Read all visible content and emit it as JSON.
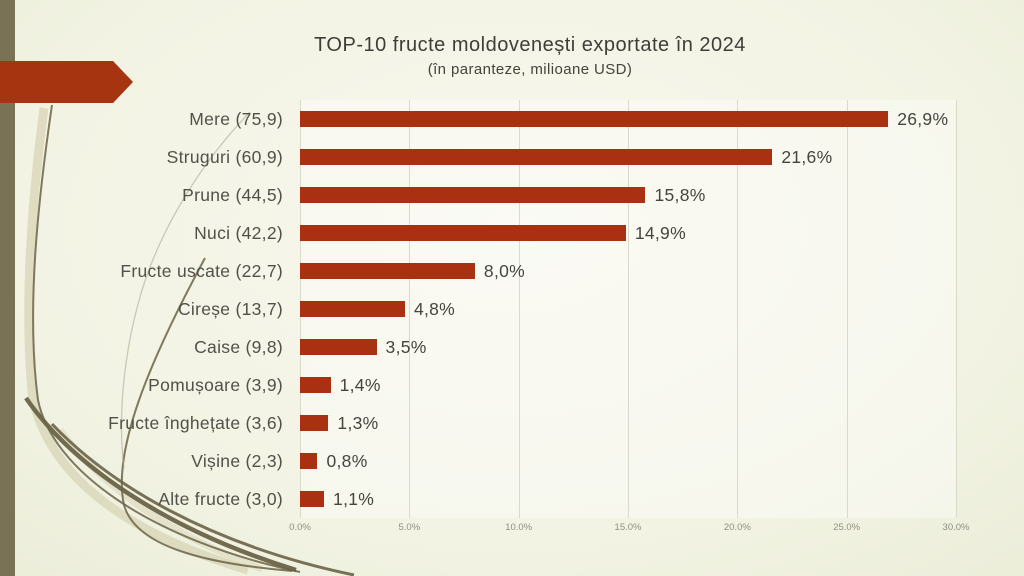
{
  "slide": {
    "title": "TOP-10 fructe moldovenești exportate în 2024",
    "subtitle": "(în paranteze, milioane USD)"
  },
  "chart_data": {
    "type": "bar",
    "orientation": "horizontal",
    "title": "TOP-10 fructe moldovenești exportate în 2024",
    "subtitle": "(în paranteze, milioane USD)",
    "categories": [
      "Mere (75,9)",
      "Struguri (60,9)",
      "Prune (44,5)",
      "Nuci (42,2)",
      "Fructe uscate (22,7)",
      "Cireșe (13,7)",
      "Caise (9,8)",
      "Pomușoare (3,9)",
      "Fructe înghețate (3,6)",
      "Vișine (2,3)",
      "Alte fructe (3,0)"
    ],
    "values": [
      26.9,
      21.6,
      15.8,
      14.9,
      8.0,
      4.8,
      3.5,
      1.4,
      1.3,
      0.8,
      1.1
    ],
    "value_labels": [
      "26,9%",
      "21,6%",
      "15,8%",
      "14,9%",
      "8,0%",
      "4,8%",
      "3,5%",
      "1,4%",
      "1,3%",
      "0,8%",
      "1,1%"
    ],
    "usd_millions_in_parentheses": [
      75.9,
      60.9,
      44.5,
      42.2,
      22.7,
      13.7,
      9.8,
      3.9,
      3.6,
      2.3,
      3.0
    ],
    "x_axis": {
      "ticks": [
        "0.0%",
        "5.0%",
        "10.0%",
        "15.0%",
        "20.0%",
        "25.0%",
        "30.0%"
      ],
      "min": 0,
      "max": 30,
      "step": 5
    },
    "grid": true,
    "legend": false,
    "bar_color": "#a93112",
    "label_color": "#51514a"
  },
  "decor": {
    "left_band_color": "#7a7254",
    "arrow_color": "#a63410",
    "swoosh_dark_color": "#6b6348",
    "swoosh_light_color": "#d8d4b6",
    "gridline_color": "#d9d9cc",
    "background_center": "#f8f7ee",
    "background_edge": "#dde3c4"
  }
}
